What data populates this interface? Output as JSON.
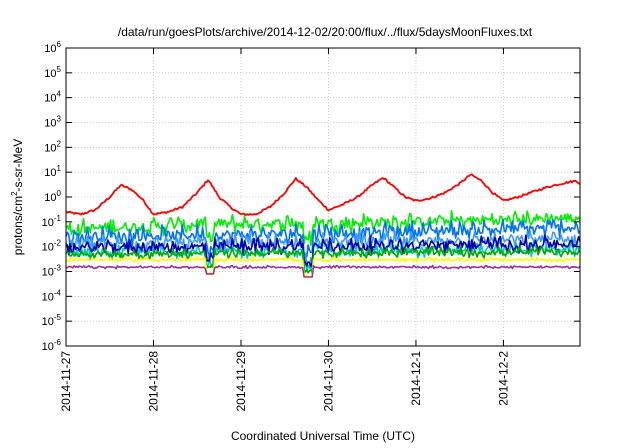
{
  "chart_data": {
    "type": "line",
    "title": "/data/run/goesPlots/archive/2014-12-02/20:00/flux/../flux/5daysMoonFluxes.txt",
    "xlabel": "Coordinated Universal Time (UTC)",
    "ylabel_parts": [
      "protons/cm",
      "2",
      "-s-sr-MeV"
    ],
    "y_scale": "log",
    "ylim": [
      1e-06,
      1000000.0
    ],
    "y_ticks": [
      {
        "base": "10",
        "exp": "6",
        "value": 1000000.0
      },
      {
        "base": "10",
        "exp": "5",
        "value": 100000.0
      },
      {
        "base": "10",
        "exp": "4",
        "value": 10000.0
      },
      {
        "base": "10",
        "exp": "3",
        "value": 1000.0
      },
      {
        "base": "10",
        "exp": "2",
        "value": 100.0
      },
      {
        "base": "10",
        "exp": "1",
        "value": 10.0
      },
      {
        "base": "10",
        "exp": "0",
        "value": 1
      },
      {
        "base": "10",
        "exp": "-1",
        "value": 0.1
      },
      {
        "base": "10",
        "exp": "-2",
        "value": 0.01
      },
      {
        "base": "10",
        "exp": "-3",
        "value": 0.001
      },
      {
        "base": "10",
        "exp": "-4",
        "value": 0.0001
      },
      {
        "base": "10",
        "exp": "-5",
        "value": 1e-05
      },
      {
        "base": "10",
        "exp": "-6",
        "value": 1e-06
      }
    ],
    "x_ticks": [
      "2014-11-27",
      "2014-11-28",
      "2014-11-29",
      "2014-11-30",
      "2014-12-1",
      "2014-12-2"
    ],
    "xlim": [
      "2014-11-27T00:00",
      "2014-12-02T21:00"
    ],
    "grid": true,
    "series": [
      {
        "color": "#ff0000",
        "noise": 0.08,
        "points": [
          [
            "2014-11-27T00:00",
            0.25
          ],
          [
            "2014-11-27T04:00",
            0.2
          ],
          [
            "2014-11-27T08:00",
            0.3
          ],
          [
            "2014-11-27T12:00",
            1.0
          ],
          [
            "2014-11-27T15:00",
            3.0
          ],
          [
            "2014-11-27T18:00",
            2.0
          ],
          [
            "2014-11-27T21:00",
            0.8
          ],
          [
            "2014-11-28T00:00",
            0.2
          ],
          [
            "2014-11-28T04:00",
            0.25
          ],
          [
            "2014-11-28T08:00",
            0.4
          ],
          [
            "2014-11-28T12:00",
            1.5
          ],
          [
            "2014-11-28T15:00",
            5.0
          ],
          [
            "2014-11-28T18:00",
            1.0
          ],
          [
            "2014-11-28T21:00",
            0.4
          ],
          [
            "2014-11-29T00:00",
            0.2
          ],
          [
            "2014-11-29T04:00",
            0.2
          ],
          [
            "2014-11-29T08:00",
            0.4
          ],
          [
            "2014-11-29T12:00",
            1.5
          ],
          [
            "2014-11-29T15:00",
            5.5
          ],
          [
            "2014-11-29T18:00",
            2.5
          ],
          [
            "2014-11-29T21:00",
            0.8
          ],
          [
            "2014-11-30T00:00",
            0.3
          ],
          [
            "2014-11-30T04:00",
            0.5
          ],
          [
            "2014-11-30T08:00",
            1.0
          ],
          [
            "2014-11-30T12:00",
            3.0
          ],
          [
            "2014-11-30T15:00",
            6.0
          ],
          [
            "2014-11-30T18:00",
            2.5
          ],
          [
            "2014-11-30T21:00",
            1.0
          ],
          [
            "2014-12-01T00:00",
            0.7
          ],
          [
            "2014-12-01T04:00",
            0.9
          ],
          [
            "2014-12-01T08:00",
            1.5
          ],
          [
            "2014-12-01T12:00",
            3.5
          ],
          [
            "2014-12-01T15:00",
            8.0
          ],
          [
            "2014-12-01T18:00",
            4.5
          ],
          [
            "2014-12-01T21:00",
            1.5
          ],
          [
            "2014-12-02T00:00",
            0.7
          ],
          [
            "2014-12-02T04:00",
            1.0
          ],
          [
            "2014-12-02T08:00",
            1.6
          ],
          [
            "2014-12-02T12:00",
            2.5
          ],
          [
            "2014-12-02T16:00",
            3.5
          ],
          [
            "2014-12-02T20:00",
            4.5
          ],
          [
            "2014-12-02T21:00",
            3.5
          ]
        ]
      },
      {
        "color": "#00ee00",
        "noise": 0.55,
        "points": [
          [
            "2014-11-27T00:00",
            0.05
          ],
          [
            "2014-11-28T12:00",
            0.08
          ],
          [
            "2014-12-01T00:00",
            0.1
          ],
          [
            "2014-12-02T21:00",
            0.15
          ]
        ]
      },
      {
        "color": "#0070ff",
        "noise": 0.55,
        "points": [
          [
            "2014-11-27T00:00",
            0.025
          ],
          [
            "2014-11-30T00:00",
            0.035
          ],
          [
            "2014-12-02T21:00",
            0.06
          ]
        ]
      },
      {
        "color": "#3a9dff",
        "noise": 0.5,
        "points": [
          [
            "2014-11-27T00:00",
            0.012
          ],
          [
            "2014-12-02T21:00",
            0.02
          ]
        ]
      },
      {
        "color": "#00c8c8",
        "noise": 0.4,
        "points": [
          [
            "2014-11-27T00:00",
            0.006
          ],
          [
            "2014-12-02T21:00",
            0.008
          ]
        ]
      },
      {
        "color": "#0000aa",
        "noise": 0.45,
        "points": [
          [
            "2014-11-27T00:00",
            0.009
          ],
          [
            "2014-12-02T21:00",
            0.013
          ]
        ]
      },
      {
        "color": "#00aa00",
        "noise": 0.3,
        "points": [
          [
            "2014-11-27T00:00",
            0.005
          ],
          [
            "2014-12-02T21:00",
            0.006
          ]
        ]
      },
      {
        "color": "#ffff00",
        "noise": 0.12,
        "points": [
          [
            "2014-11-27T00:00",
            0.003
          ],
          [
            "2014-12-02T21:00",
            0.003
          ]
        ]
      },
      {
        "color": "#993399",
        "noise": 0.08,
        "points": [
          [
            "2014-11-27T00:00",
            0.0015
          ],
          [
            "2014-12-02T21:00",
            0.0015
          ]
        ]
      }
    ],
    "dips": [
      {
        "time": "2014-11-28T15:30",
        "min": 0.0008,
        "depth": 0.7
      },
      {
        "time": "2014-11-29T18:30",
        "min": 0.0006,
        "depth": 0.8
      }
    ]
  }
}
